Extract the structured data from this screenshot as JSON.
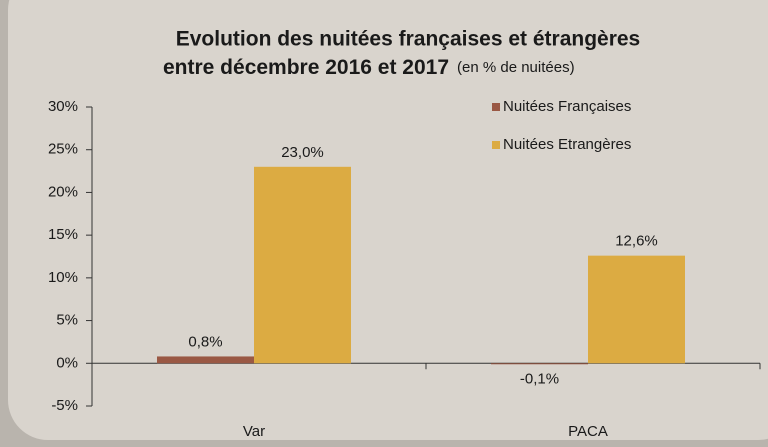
{
  "chart_data": {
    "type": "bar",
    "title": "Evolution des nuitées françaises et étrangères",
    "title_line2": "entre décembre 2016 et 2017",
    "subtitle": "(en % de nuitées)",
    "categories": [
      "Var",
      "PACA"
    ],
    "series": [
      {
        "name": "Nuitées Françaises",
        "color": "#9a5844",
        "values": [
          0.8,
          -0.1
        ],
        "value_labels": [
          "0,8%",
          "-0,1%"
        ]
      },
      {
        "name": "Nuitées Etrangères",
        "color": "#dcab42",
        "values": [
          23.0,
          12.6
        ],
        "value_labels": [
          "23,0%",
          "12,6%"
        ]
      }
    ],
    "ylim": [
      -5,
      30
    ],
    "yticks": [
      {
        "value": -5,
        "label": "-5%"
      },
      {
        "value": 0,
        "label": "0%"
      },
      {
        "value": 5,
        "label": "5%"
      },
      {
        "value": 10,
        "label": "10%"
      },
      {
        "value": 15,
        "label": "15%"
      },
      {
        "value": 20,
        "label": "20%"
      },
      {
        "value": 25,
        "label": "25%"
      },
      {
        "value": 30,
        "label": "30%"
      }
    ],
    "legend": "top-right"
  }
}
